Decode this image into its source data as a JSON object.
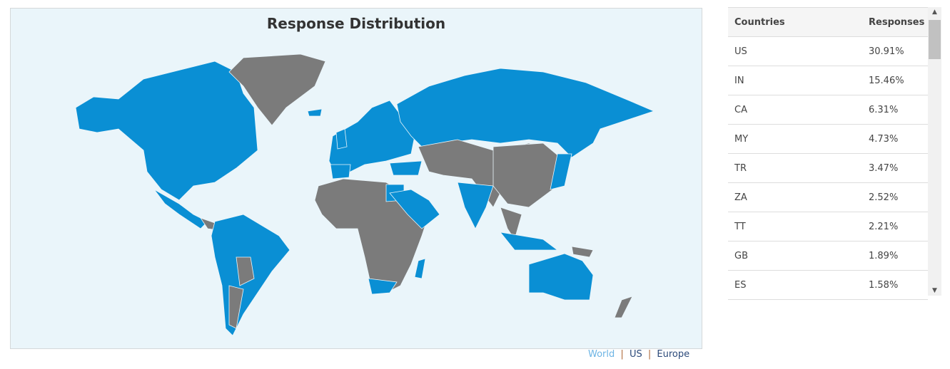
{
  "map": {
    "title": "Response Distribution",
    "colors": {
      "responded": "#0a8fd4",
      "no_response": "#7b7b7b",
      "background": "#eaf5fa"
    },
    "links": [
      "World",
      "US",
      "Europe"
    ],
    "active_link": "World"
  },
  "table": {
    "headers": {
      "country": "Countries",
      "responses": "Responses"
    },
    "rows": [
      {
        "country": "US",
        "responses": "30.91%"
      },
      {
        "country": "IN",
        "responses": "15.46%"
      },
      {
        "country": "CA",
        "responses": "6.31%"
      },
      {
        "country": "MY",
        "responses": "4.73%"
      },
      {
        "country": "TR",
        "responses": "3.47%"
      },
      {
        "country": "ZA",
        "responses": "2.52%"
      },
      {
        "country": "TT",
        "responses": "2.21%"
      },
      {
        "country": "GB",
        "responses": "1.89%"
      },
      {
        "country": "ES",
        "responses": "1.58%"
      }
    ]
  }
}
